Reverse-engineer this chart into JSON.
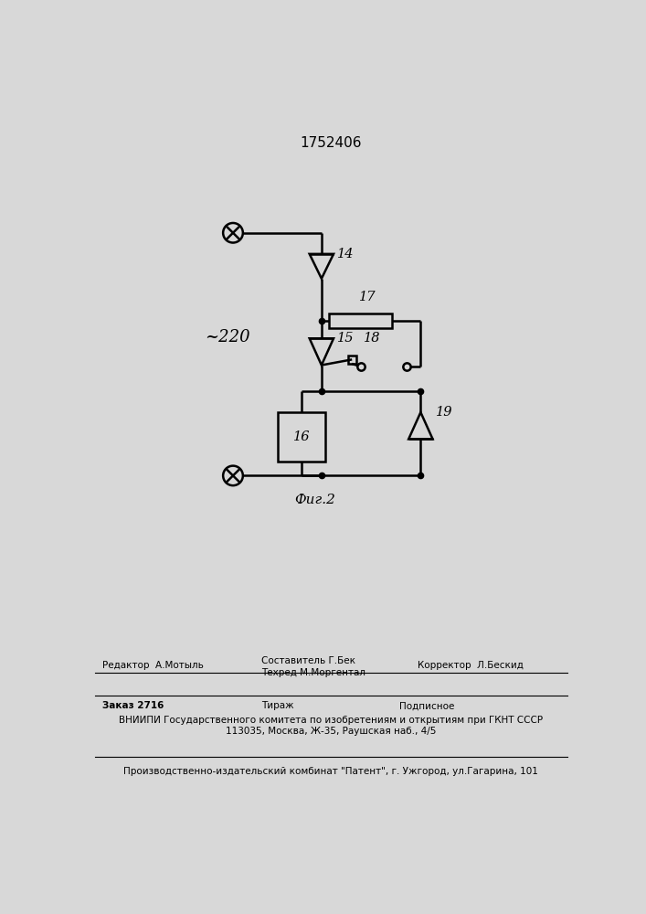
{
  "title": "1752406",
  "fig_label": "Фиг.2",
  "label_220": "~220",
  "bg_color": "#d8d8d8",
  "line_color": "#000000",
  "title_fontsize": 11,
  "editor_text": "Редактор  А.Мотыль",
  "composer_line1": "Составитель Г.Бек",
  "composer_line2": "Техред М.Моргентал",
  "corrector_text": "Корректор  Л.Бескид",
  "order_text": "Заказ 2716",
  "tirazh_text": "Тираж",
  "podpisnoe_text": "Подписное",
  "vniiipi_line1": "ВНИИПИ Государственного комитета по изобретениям и открытиям при ГКНТ СССР",
  "vniiipi_line2": "113035, Москва, Ж-35, Раушская наб., 4/5",
  "production_text": "Производственно-издательский комбинат \"Патент\", г. Ужгород, ул.Гагарина, 101"
}
